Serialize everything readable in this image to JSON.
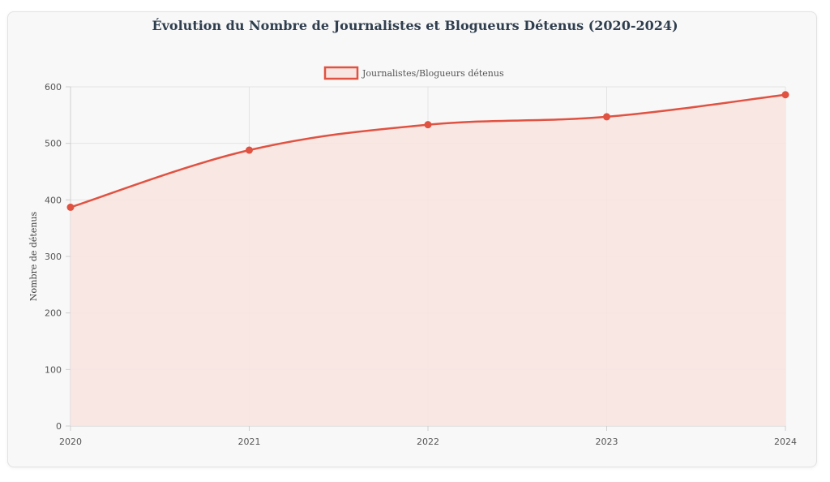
{
  "chart_data": {
    "type": "area",
    "title": "Évolution du Nombre de Journalistes et Blogueurs Détenus (2020-2024)",
    "ylabel": "Nombre de détenus",
    "xlabel": "",
    "categories": [
      "2020",
      "2021",
      "2022",
      "2023",
      "2024"
    ],
    "series": [
      {
        "name": "Journalistes/Blogueurs détenus",
        "values": [
          387,
          488,
          533,
          547,
          586
        ]
      }
    ],
    "ylim": [
      0,
      600
    ],
    "yticks": [
      0,
      100,
      200,
      300,
      400,
      500,
      600
    ],
    "grid": true,
    "legend": "top-center",
    "line_color": "#e05241",
    "fill_color": "#f8e4e1",
    "smooth": true
  }
}
